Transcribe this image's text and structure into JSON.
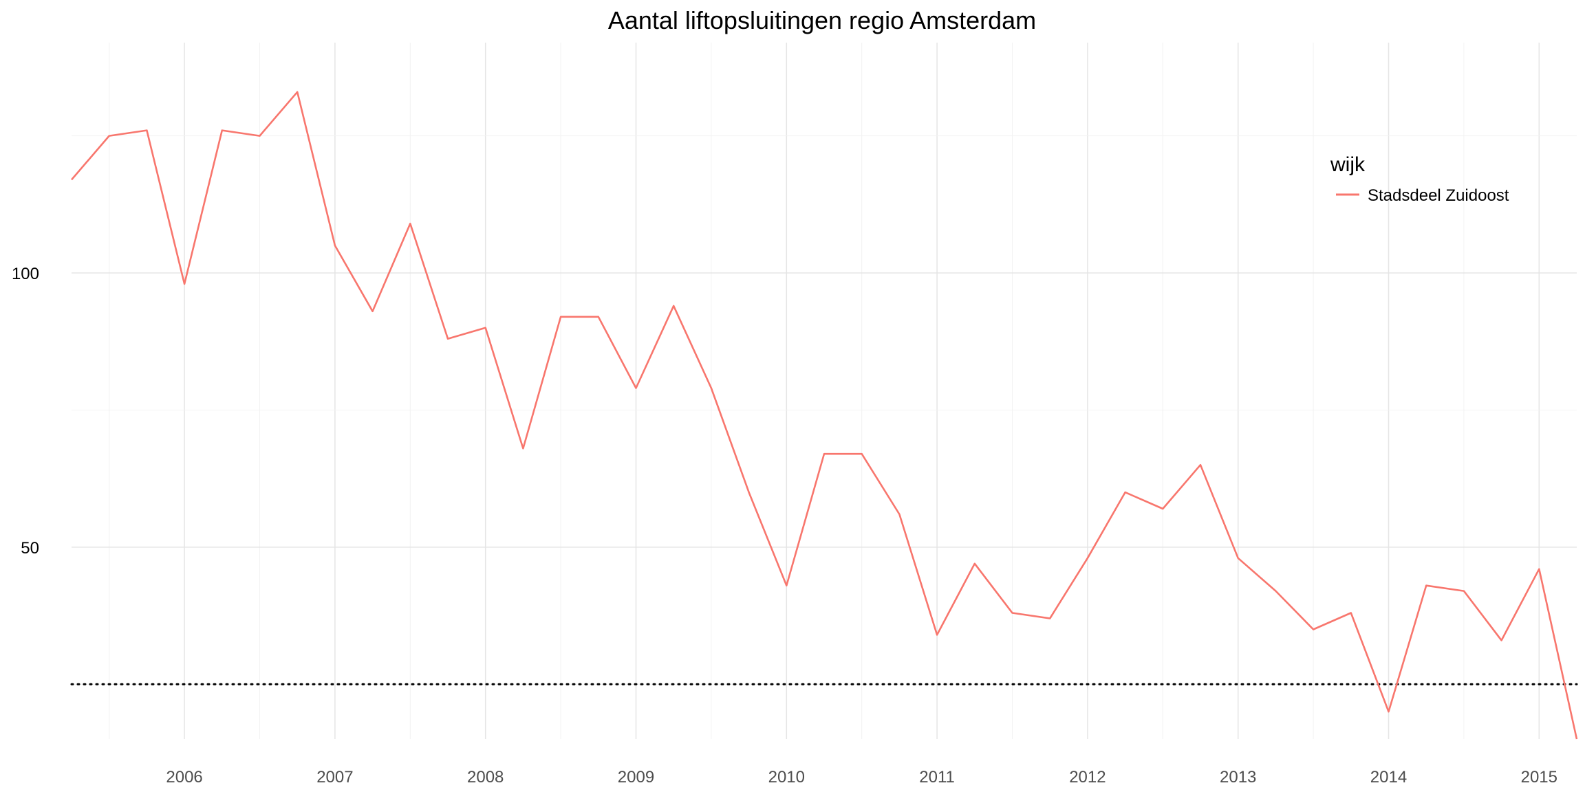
{
  "chart_data": {
    "type": "line",
    "title": "Aantal liftopsluitingen regio Amsterdam",
    "xlabel": "",
    "ylabel": "",
    "x_start": "2005-04",
    "x_step_months": 3,
    "xlim": [
      "2005-04",
      "2015-04"
    ],
    "ylim": [
      15,
      142
    ],
    "x_ticks": [
      "2006",
      "2007",
      "2008",
      "2009",
      "2010",
      "2011",
      "2012",
      "2013",
      "2014",
      "2015"
    ],
    "y_ticks": [
      50,
      100
    ],
    "grid": true,
    "reference_line": {
      "value": 25,
      "style": "dotted",
      "color": "#000000"
    },
    "legend": {
      "title": "wijk",
      "placement": "right"
    },
    "series": [
      {
        "name": "Stadsdeel Zuidoost",
        "color": "#F8766D",
        "x": [
          "2005-04",
          "2005-07",
          "2005-10",
          "2006-01",
          "2006-04",
          "2006-07",
          "2006-10",
          "2007-01",
          "2007-04",
          "2007-07",
          "2007-10",
          "2008-01",
          "2008-04",
          "2008-07",
          "2008-10",
          "2009-01",
          "2009-04",
          "2009-07",
          "2009-10",
          "2010-01",
          "2010-04",
          "2010-07",
          "2010-10",
          "2011-01",
          "2011-04",
          "2011-07",
          "2011-10",
          "2012-01",
          "2012-04",
          "2012-07",
          "2012-10",
          "2013-01",
          "2013-04",
          "2013-07",
          "2013-10",
          "2014-01",
          "2014-04",
          "2014-07",
          "2014-10",
          "2015-01",
          "2015-04"
        ],
        "values": [
          117,
          125,
          126,
          98,
          126,
          125,
          133,
          105,
          93,
          109,
          88,
          90,
          68,
          92,
          92,
          79,
          94,
          79,
          60,
          43,
          67,
          67,
          56,
          34,
          47,
          38,
          37,
          48,
          60,
          57,
          65,
          48,
          42,
          35,
          38,
          20,
          43,
          42,
          33,
          46,
          15
        ]
      }
    ]
  }
}
